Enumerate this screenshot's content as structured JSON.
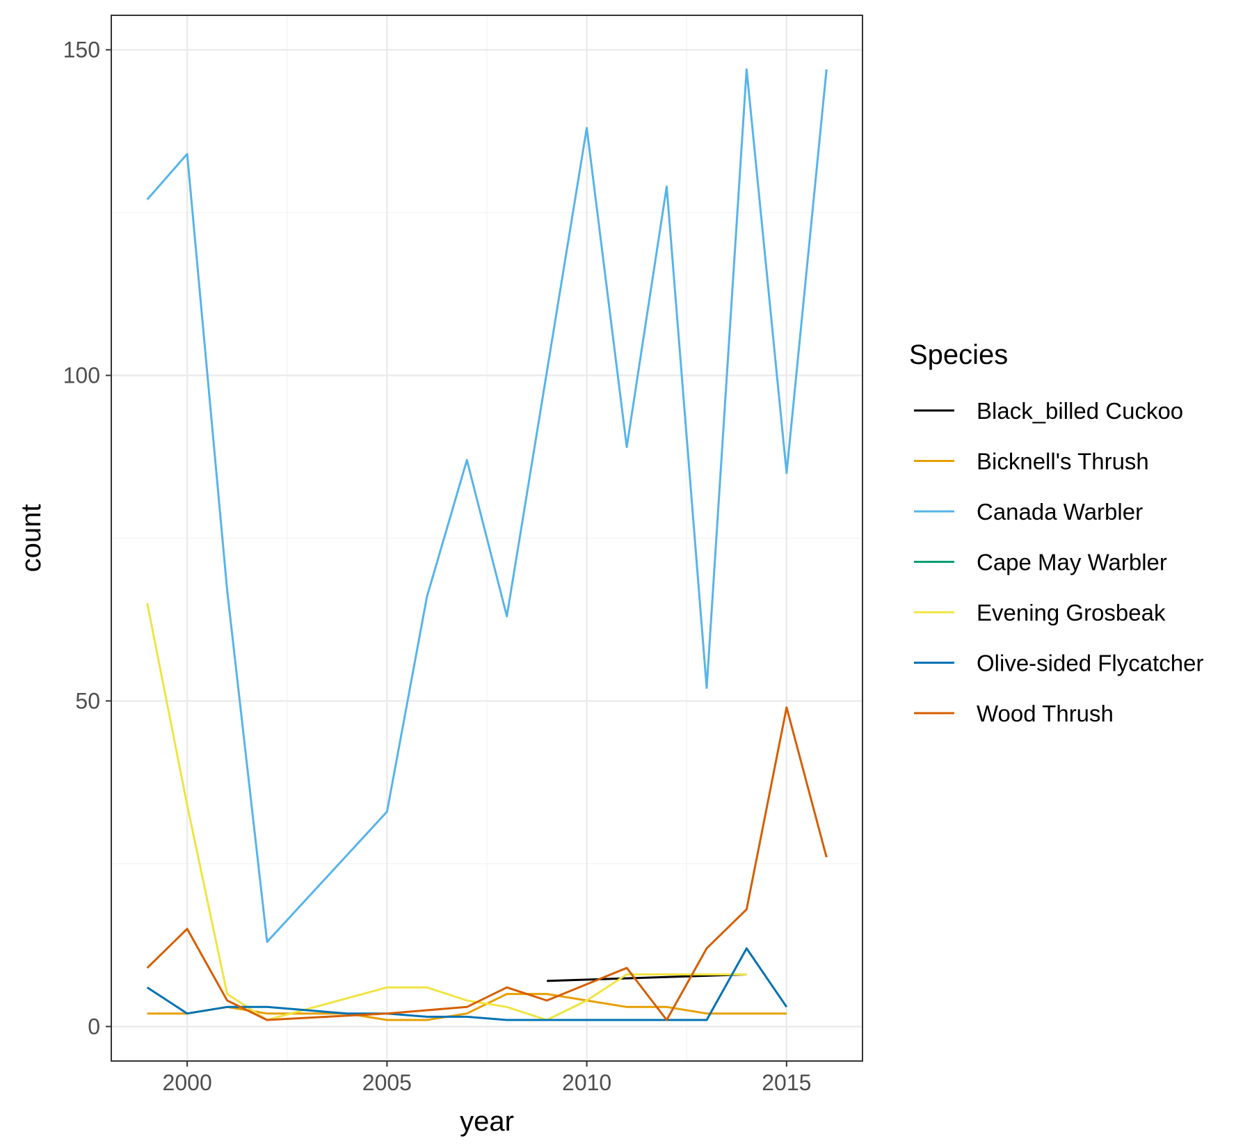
{
  "chart_data": {
    "type": "line",
    "title": "",
    "xlabel": "year",
    "ylabel": "count",
    "xlim": [
      1998.1,
      2016.9
    ],
    "ylim": [
      -5.3,
      155.3
    ],
    "x_ticks": [
      2000,
      2005,
      2010,
      2015
    ],
    "x_tick_labels": [
      "2000",
      "2005",
      "2010",
      "2015"
    ],
    "y_ticks": [
      0,
      50,
      100,
      150
    ],
    "y_tick_labels": [
      "0",
      "50",
      "100",
      "150"
    ],
    "grid": true,
    "legend_position": "right",
    "legend_title": "Species",
    "series": [
      {
        "name": "Black_billed Cuckoo",
        "color": "#000000",
        "x": [
          2009,
          2010,
          2011,
          2012,
          2013,
          2014
        ],
        "y": [
          7,
          7.2,
          7.4,
          7.6,
          7.8,
          8
        ]
      },
      {
        "name": "Bicknell's Thrush",
        "color": "#E69F00",
        "x": [
          1999,
          2000,
          2001,
          2002,
          2003,
          2004,
          2005,
          2006,
          2007,
          2008,
          2009,
          2010,
          2011,
          2012,
          2013,
          2014,
          2015
        ],
        "y": [
          2,
          2,
          3,
          2,
          2,
          2,
          1,
          1,
          2,
          5,
          5,
          4,
          3,
          3,
          2,
          2,
          2
        ]
      },
      {
        "name": "Canada Warbler",
        "color": "#56B4E9",
        "x": [
          1999,
          2000,
          2001,
          2002,
          2005,
          2006,
          2007,
          2008,
          2010,
          2011,
          2012,
          2013,
          2014,
          2015,
          2016
        ],
        "y": [
          127,
          134,
          67,
          13,
          33,
          66,
          87,
          63,
          138,
          89,
          129,
          52,
          147,
          85,
          147
        ]
      },
      {
        "name": "Cape May Warbler",
        "color": "#009E73",
        "x": [],
        "y": []
      },
      {
        "name": "Evening Grosbeak",
        "color": "#F0E442",
        "x": [
          1999,
          2000,
          2001,
          2002,
          2005,
          2006,
          2007,
          2008,
          2009,
          2010,
          2011,
          2012,
          2013,
          2014
        ],
        "y": [
          65,
          34,
          5,
          1,
          6,
          6,
          4,
          3,
          1,
          4,
          8,
          8,
          8,
          8
        ]
      },
      {
        "name": "Olive-sided Flycatcher",
        "color": "#0072B2",
        "x": [
          1999,
          2000,
          2001,
          2002,
          2003,
          2004,
          2005,
          2006,
          2007,
          2008,
          2009,
          2010,
          2011,
          2012,
          2013,
          2014,
          2015
        ],
        "y": [
          6,
          2,
          3,
          3,
          2.5,
          2,
          2,
          1.5,
          1.5,
          1,
          1,
          1,
          1,
          1,
          1,
          12,
          3
        ]
      },
      {
        "name": "Wood Thrush",
        "color": "#D55E00",
        "x": [
          1999,
          2000,
          2001,
          2002,
          2005,
          2006,
          2007,
          2008,
          2009,
          2010,
          2011,
          2012,
          2013,
          2014,
          2015,
          2016
        ],
        "y": [
          9,
          15,
          4,
          1,
          2,
          2.5,
          3,
          6,
          4,
          6.5,
          9,
          1,
          12,
          18,
          49,
          26
        ]
      }
    ]
  }
}
